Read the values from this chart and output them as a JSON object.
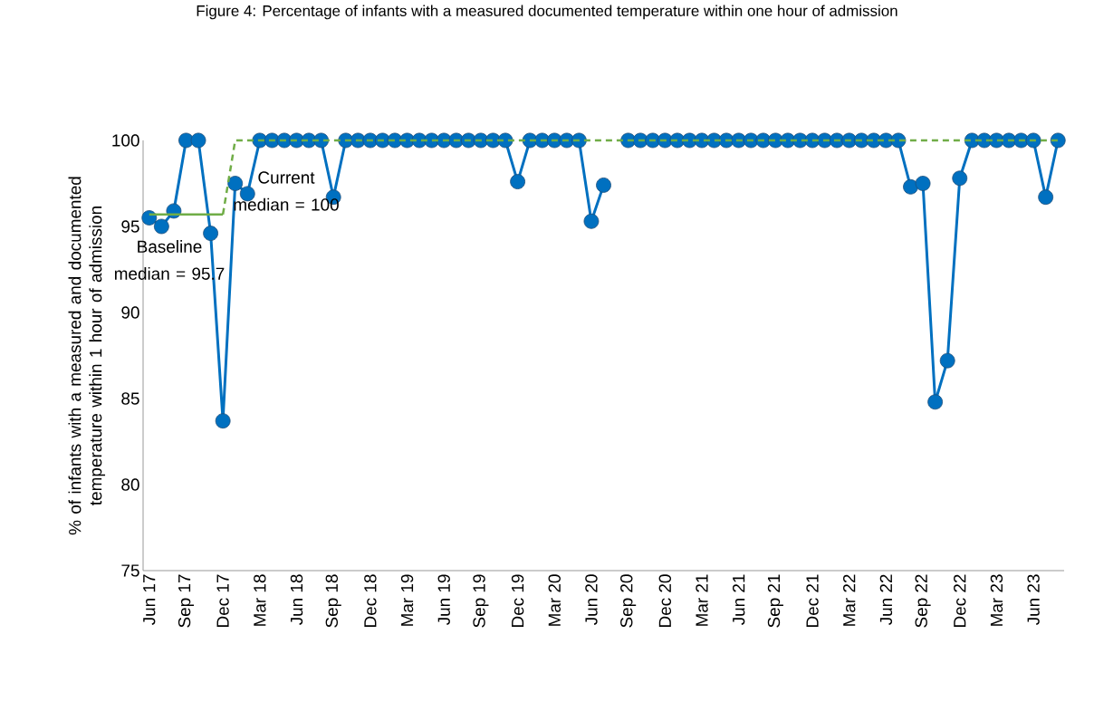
{
  "chart_data": {
    "type": "line",
    "title": "Figure 4: Percentage of infants with a measured documented temperature within one hour of admission",
    "ylabel": "% of infants with a measured and documented temperature within 1 hour of admission",
    "categories": [
      "Jun 17",
      null,
      null,
      "Sep 17",
      null,
      null,
      "Dec 17",
      null,
      null,
      "Mar 18",
      null,
      null,
      "Jun 18",
      null,
      null,
      "Sep 18",
      null,
      null,
      "Dec 18",
      null,
      null,
      "Mar 19",
      null,
      null,
      "Jun 19",
      null,
      null,
      "Sep 19",
      null,
      null,
      "Dec 19",
      null,
      null,
      "Mar 20",
      null,
      null,
      "Jun 20",
      null,
      null,
      "Sep 20",
      null,
      null,
      "Dec 20",
      null,
      null,
      "Mar 21",
      null,
      null,
      "Jun 21",
      null,
      null,
      "Sep 21",
      null,
      null,
      "Dec 21",
      null,
      null,
      "Mar 22",
      null,
      null,
      "Jun 22",
      null,
      null,
      "Sep 22",
      null,
      null,
      "Dec 22",
      null,
      null,
      "Mar 23",
      null,
      null,
      "Jun 23",
      null,
      null
    ],
    "series": [
      {
        "color": "#0070c0",
        "marker": "circle",
        "line_style": "solid",
        "values": [
          95.5,
          95.0,
          95.9,
          100,
          100,
          94.6,
          83.7,
          97.5,
          96.9,
          100,
          100,
          100,
          100,
          100,
          100,
          96.7,
          100,
          100,
          100,
          100,
          100,
          100,
          100,
          100,
          100,
          100,
          100,
          100,
          100,
          100,
          97.6,
          100,
          100,
          100,
          100,
          100,
          95.3,
          97.4,
          null,
          100,
          100,
          100,
          100,
          100,
          100,
          100,
          100,
          100,
          100,
          100,
          100,
          100,
          100,
          100,
          100,
          100,
          100,
          100,
          100,
          100,
          100,
          100,
          97.3,
          97.5,
          84.8,
          87.2,
          97.8,
          100,
          100,
          100,
          100,
          100,
          100,
          96.7,
          100
        ]
      },
      {
        "color": "#70ad47",
        "marker": "none",
        "line_style": "solid",
        "values": [
          95.7,
          95.7,
          95.7,
          95.7,
          95.7,
          95.7,
          95.7,
          null,
          null,
          null,
          null,
          null,
          null,
          null,
          null,
          null,
          null,
          null,
          null,
          null,
          null,
          null,
          null,
          null,
          null,
          null,
          null,
          null,
          null,
          null,
          null,
          null,
          null,
          null,
          null,
          null,
          null,
          null,
          null,
          null,
          null,
          null,
          null,
          null,
          null,
          null,
          null,
          null,
          null,
          null,
          null,
          null,
          null,
          null,
          null,
          null,
          null,
          null,
          null,
          null,
          null,
          null,
          null,
          null,
          null,
          null,
          null,
          null,
          null,
          null,
          null,
          null,
          null,
          null,
          null
        ]
      },
      {
        "color": "#70ad47",
        "marker": "none",
        "line_style": "dashed",
        "values": [
          null,
          null,
          null,
          null,
          null,
          null,
          95.7,
          100,
          100,
          100,
          100,
          100,
          100,
          100,
          100,
          100,
          100,
          100,
          100,
          100,
          100,
          100,
          100,
          100,
          100,
          100,
          100,
          100,
          100,
          100,
          100,
          100,
          100,
          100,
          100,
          100,
          100,
          100,
          100,
          100,
          100,
          100,
          100,
          100,
          100,
          100,
          100,
          100,
          100,
          100,
          100,
          100,
          100,
          100,
          100,
          100,
          100,
          100,
          100,
          100,
          100,
          100,
          100,
          100,
          100,
          100,
          100,
          100,
          100,
          100,
          100,
          100,
          100,
          100,
          100
        ]
      }
    ],
    "ylim": [
      75,
      100
    ],
    "yticks": [
      75,
      80,
      85,
      90,
      95,
      100
    ],
    "annotations": [
      "Current median = 100",
      "Baseline median = 95.7"
    ]
  }
}
